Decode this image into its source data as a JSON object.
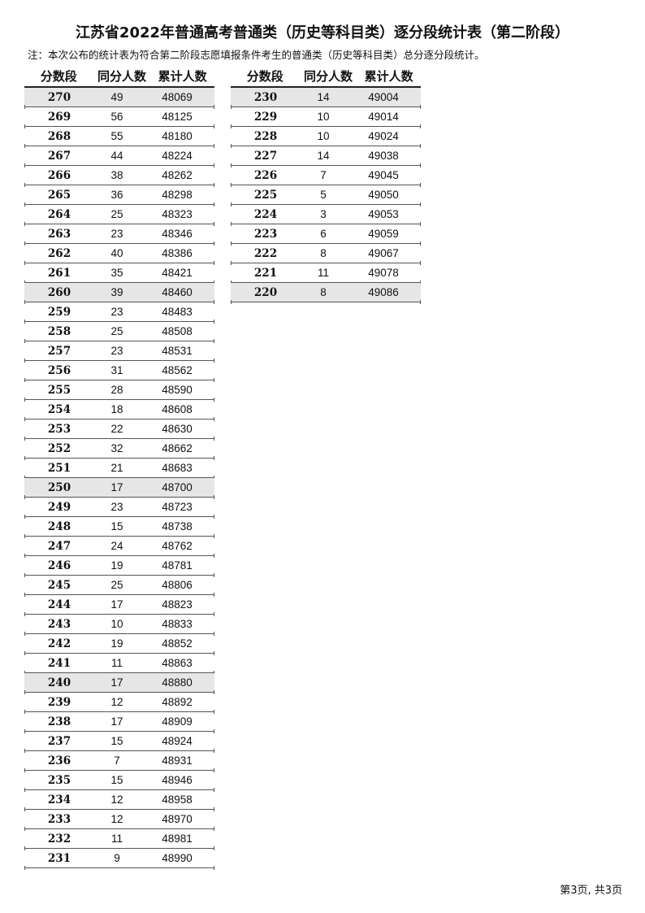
{
  "title": "江苏省2022年普通高考普通类（历史等科目类）逐分段统计表（第二阶段）",
  "note": "注：本次公布的统计表为符合第二阶段志愿填报条件考生的普通类（历史等科目类）总分逐分段统计。",
  "columns": [
    "分数段",
    "同分人数",
    "累计人数"
  ],
  "highlight_color": "#e6e6e6",
  "tables": [
    {
      "rows": [
        [
          "270",
          "49",
          "48069"
        ],
        [
          "269",
          "56",
          "48125"
        ],
        [
          "268",
          "55",
          "48180"
        ],
        [
          "267",
          "44",
          "48224"
        ],
        [
          "266",
          "38",
          "48262"
        ],
        [
          "265",
          "36",
          "48298"
        ],
        [
          "264",
          "25",
          "48323"
        ],
        [
          "263",
          "23",
          "48346"
        ],
        [
          "262",
          "40",
          "48386"
        ],
        [
          "261",
          "35",
          "48421"
        ],
        [
          "260",
          "39",
          "48460"
        ],
        [
          "259",
          "23",
          "48483"
        ],
        [
          "258",
          "25",
          "48508"
        ],
        [
          "257",
          "23",
          "48531"
        ],
        [
          "256",
          "31",
          "48562"
        ],
        [
          "255",
          "28",
          "48590"
        ],
        [
          "254",
          "18",
          "48608"
        ],
        [
          "253",
          "22",
          "48630"
        ],
        [
          "252",
          "32",
          "48662"
        ],
        [
          "251",
          "21",
          "48683"
        ],
        [
          "250",
          "17",
          "48700"
        ],
        [
          "249",
          "23",
          "48723"
        ],
        [
          "248",
          "15",
          "48738"
        ],
        [
          "247",
          "24",
          "48762"
        ],
        [
          "246",
          "19",
          "48781"
        ],
        [
          "245",
          "25",
          "48806"
        ],
        [
          "244",
          "17",
          "48823"
        ],
        [
          "243",
          "10",
          "48833"
        ],
        [
          "242",
          "19",
          "48852"
        ],
        [
          "241",
          "11",
          "48863"
        ],
        [
          "240",
          "17",
          "48880"
        ],
        [
          "239",
          "12",
          "48892"
        ],
        [
          "238",
          "17",
          "48909"
        ],
        [
          "237",
          "15",
          "48924"
        ],
        [
          "236",
          "7",
          "48931"
        ],
        [
          "235",
          "15",
          "48946"
        ],
        [
          "234",
          "12",
          "48958"
        ],
        [
          "233",
          "12",
          "48970"
        ],
        [
          "232",
          "11",
          "48981"
        ],
        [
          "231",
          "9",
          "48990"
        ]
      ]
    },
    {
      "rows": [
        [
          "230",
          "14",
          "49004"
        ],
        [
          "229",
          "10",
          "49014"
        ],
        [
          "228",
          "10",
          "49024"
        ],
        [
          "227",
          "14",
          "49038"
        ],
        [
          "226",
          "7",
          "49045"
        ],
        [
          "225",
          "5",
          "49050"
        ],
        [
          "224",
          "3",
          "49053"
        ],
        [
          "223",
          "6",
          "49059"
        ],
        [
          "222",
          "8",
          "49067"
        ],
        [
          "221",
          "11",
          "49078"
        ],
        [
          "220",
          "8",
          "49086"
        ]
      ]
    }
  ],
  "footer": "第3页, 共3页"
}
